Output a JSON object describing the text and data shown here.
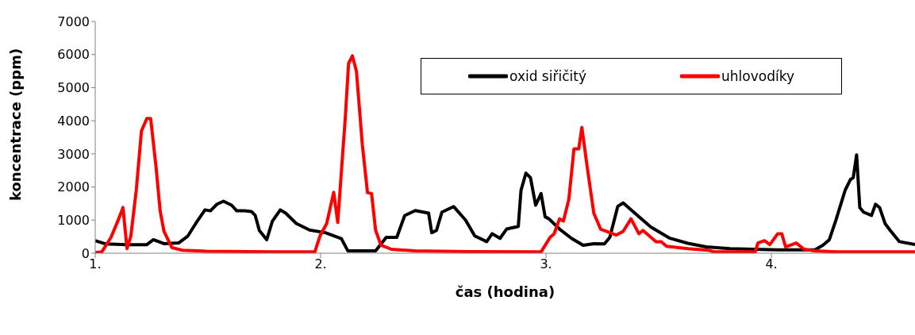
{
  "chart_data": {
    "type": "line",
    "xlabel": "čas (hodina)",
    "ylabel": "koncentrace (ppm)",
    "xlim": [
      1,
      4.637
    ],
    "xticks": [
      {
        "value": 1,
        "label": "1."
      },
      {
        "value": 2,
        "label": "2."
      },
      {
        "value": 3,
        "label": "3."
      },
      {
        "value": 4,
        "label": "4."
      }
    ],
    "ylim": [
      0,
      7000
    ],
    "yticks": [
      0,
      1000,
      2000,
      3000,
      4000,
      5000,
      6000,
      7000
    ],
    "grid": false,
    "legend": "top right",
    "marker": "none",
    "line_style": "solid",
    "series": [
      {
        "name": "oxid siřičitý",
        "color": "#000000",
        "x": [
          1.0,
          1.047,
          1.141,
          1.229,
          1.258,
          1.305,
          1.37,
          1.411,
          1.446,
          1.487,
          1.511,
          1.54,
          1.569,
          1.605,
          1.628,
          1.663,
          1.693,
          1.71,
          1.728,
          1.761,
          1.786,
          1.821,
          1.845,
          1.892,
          1.951,
          2.021,
          2.092,
          2.121,
          2.244,
          2.291,
          2.338,
          2.373,
          2.42,
          2.479,
          2.493,
          2.514,
          2.538,
          2.59,
          2.643,
          2.684,
          2.737,
          2.761,
          2.796,
          2.825,
          2.877,
          2.889,
          2.911,
          2.931,
          2.954,
          2.978,
          2.996,
          3.013,
          3.06,
          3.113,
          3.165,
          3.212,
          3.259,
          3.283,
          3.318,
          3.342,
          3.394,
          3.465,
          3.547,
          3.629,
          3.711,
          3.817,
          4.028,
          4.193,
          4.228,
          4.257,
          4.286,
          4.327,
          4.351,
          4.363,
          4.378,
          4.392,
          4.409,
          4.444,
          4.462,
          4.48,
          4.504,
          4.527,
          4.568,
          4.637
        ],
        "values": [
          380,
          280,
          260,
          260,
          410,
          290,
          310,
          520,
          900,
          1310,
          1280,
          1480,
          1570,
          1450,
          1280,
          1280,
          1260,
          1140,
          690,
          410,
          970,
          1310,
          1210,
          900,
          700,
          620,
          440,
          70,
          70,
          480,
          480,
          1140,
          1290,
          1210,
          620,
          690,
          1240,
          1410,
          1000,
          520,
          350,
          590,
          450,
          730,
          810,
          1900,
          2420,
          2280,
          1450,
          1800,
          1100,
          1040,
          730,
          450,
          240,
          290,
          280,
          480,
          1410,
          1520,
          1210,
          790,
          460,
          300,
          190,
          140,
          100,
          100,
          240,
          410,
          1000,
          1900,
          2230,
          2280,
          2970,
          1380,
          1240,
          1140,
          1480,
          1380,
          900,
          690,
          350,
          260
        ]
      },
      {
        "name": "uhlovodíky",
        "color": "#ff0000",
        "x": [
          1.0,
          1.029,
          1.07,
          1.106,
          1.123,
          1.141,
          1.158,
          1.182,
          1.205,
          1.229,
          1.246,
          1.27,
          1.288,
          1.305,
          1.34,
          1.387,
          1.493,
          1.786,
          1.974,
          1.997,
          2.027,
          2.058,
          2.076,
          2.097,
          2.109,
          2.124,
          2.141,
          2.159,
          2.185,
          2.208,
          2.226,
          2.244,
          2.268,
          2.314,
          2.42,
          2.655,
          2.978,
          3.018,
          3.036,
          3.06,
          3.077,
          3.101,
          3.124,
          3.145,
          3.159,
          3.183,
          3.212,
          3.242,
          3.312,
          3.342,
          3.377,
          3.412,
          3.43,
          3.488,
          3.511,
          3.535,
          3.629,
          3.723,
          3.746,
          3.928,
          3.94,
          3.969,
          3.993,
          4.028,
          4.046,
          4.063,
          4.11,
          4.145,
          4.193,
          4.286,
          4.637
        ],
        "values": [
          20,
          40,
          480,
          1070,
          1380,
          140,
          520,
          1900,
          3690,
          4070,
          4070,
          2590,
          1280,
          660,
          170,
          90,
          60,
          40,
          40,
          520,
          900,
          1840,
          930,
          2930,
          4040,
          5730,
          5960,
          5490,
          3280,
          1830,
          1800,
          690,
          240,
          120,
          70,
          50,
          40,
          480,
          590,
          1040,
          970,
          1620,
          3150,
          3150,
          3800,
          2590,
          1210,
          730,
          550,
          660,
          1040,
          590,
          690,
          350,
          350,
          210,
          140,
          90,
          40,
          40,
          310,
          380,
          260,
          590,
          590,
          190,
          310,
          120,
          70,
          40,
          40
        ]
      }
    ]
  }
}
